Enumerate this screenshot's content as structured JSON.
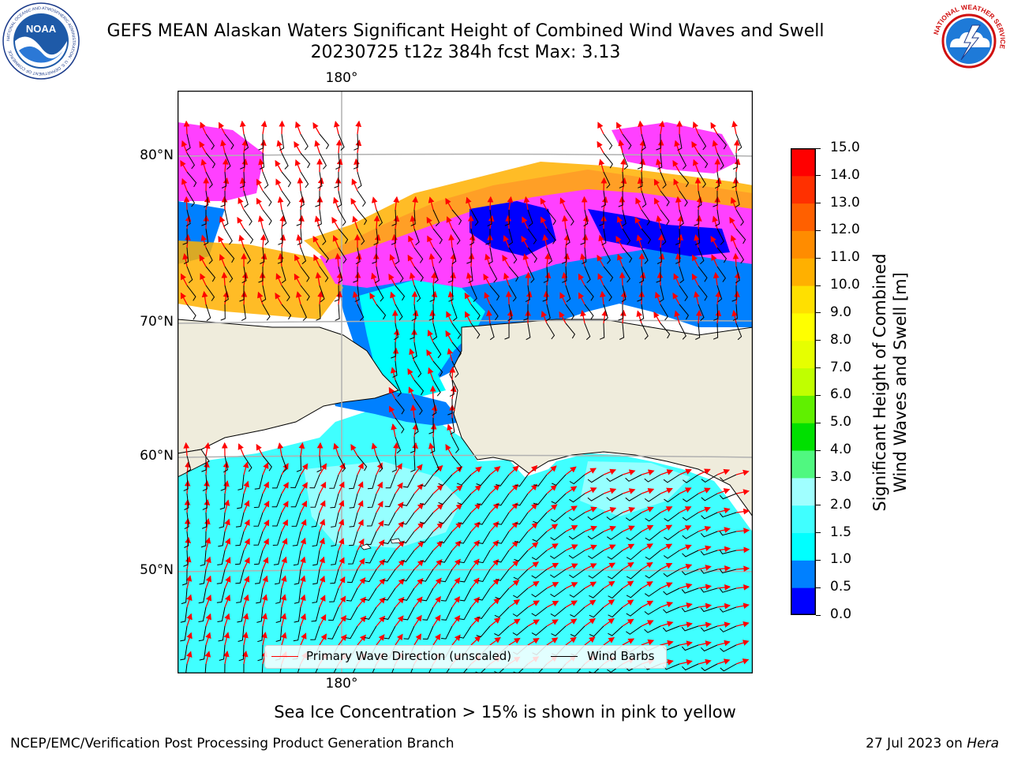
{
  "title": {
    "line1": "GEFS MEAN Alaskan Waters Significant Height of Combined Wind Waves and Swell",
    "line2": "20230725 t12z 384h fcst   Max: 3.13"
  },
  "logos": {
    "noaa": {
      "text": "NOAA",
      "ring_text": "NATIONAL OCEANIC AND ATMOSPHERIC ADMINISTRATION · U.S. DEPARTMENT OF COMMERCE"
    },
    "nws": {
      "ring_text": "NATIONAL WEATHER SERVICE"
    }
  },
  "map": {
    "region": "Alaskan Waters",
    "lon_label_top": "180°",
    "lon_label_bottom": "180°",
    "lat_labels": [
      "80°N",
      "70°N",
      "60°N",
      "50°N"
    ],
    "land_color": "#efecdc",
    "ice_note": "Sea Ice Concentration > 15% is shown in pink to yellow"
  },
  "colorbar": {
    "label": "Significant Height of Combined Wind Waves and Swell [m]",
    "label_line1": "Significant Height of Combined",
    "label_line2": "Wind Waves and Swell [m]",
    "ticks": [
      "0.0",
      "0.5",
      "1.0",
      "1.5",
      "2.0",
      "3.0",
      "4.0",
      "5.0",
      "6.0",
      "7.0",
      "8.0",
      "9.0",
      "10.0",
      "11.0",
      "12.0",
      "13.0",
      "14.0",
      "15.0"
    ],
    "colors": [
      "#0000ff",
      "#0080ff",
      "#00ffff",
      "#40ffff",
      "#a0ffff",
      "#50f880",
      "#00e000",
      "#60f000",
      "#c0ff00",
      "#e6ff00",
      "#ffff00",
      "#ffe000",
      "#ffb000",
      "#ff8c00",
      "#ff6000",
      "#ff3000",
      "#ff0000"
    ]
  },
  "legend": {
    "items": [
      {
        "label": "Primary Wave Direction (unscaled)",
        "color": "#ff0000"
      },
      {
        "label": "Wind Barbs",
        "color": "#000000"
      }
    ]
  },
  "footer": {
    "left": "NCEP/EMC/Verification Post Processing Product Generation Branch",
    "right_date": "27 Jul 2023 on ",
    "right_host": "Hera"
  }
}
